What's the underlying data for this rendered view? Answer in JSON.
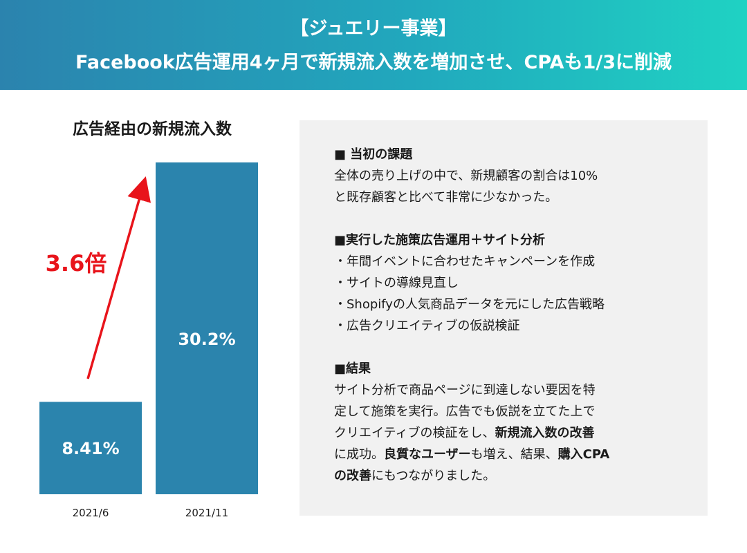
{
  "header": {
    "line1": "【ジュエリー事業】",
    "line2": "Facebook広告運用4ヶ月で新規流入数を増加させ、CPAも1/3に削減"
  },
  "chart_data": {
    "type": "bar",
    "title": "広告経由の新規流入数",
    "categories": [
      "2021/6",
      "2021/11"
    ],
    "values": [
      8.41,
      30.2
    ],
    "value_labels": [
      "8.41%",
      "30.2%"
    ],
    "unit": "%",
    "ylim": [
      0,
      32
    ],
    "bar_color": "#2b84ad",
    "annotation": {
      "text": "3.6倍",
      "color": "#e8141b"
    }
  },
  "panel": {
    "issue": {
      "title": "■ 当初の課題",
      "lines": [
        "全体の売り上げの中で、新規顧客の割合は10%",
        "と既存顧客と比べて非常に少なかった。"
      ]
    },
    "action": {
      "title": "■実行した施策広告運用＋サイト分析",
      "items": [
        "・年間イベントに合わせたキャンペーンを作成",
        "・サイトの導線見直し",
        "・Shopifyの人気商品データを元にした広告戦略",
        "・広告クリエイティブの仮説検証"
      ]
    },
    "result": {
      "title": "■結果",
      "line1": "サイト分析で商品ページに到達しない要因を特",
      "line2": "定して施策を実行。広告でも仮説を立てた上で",
      "line3_a": "クリエイティブの検証をし、",
      "line3_b": "新規流入数の改善",
      "line4_a": "に成功。",
      "line4_b": "良質なユーザー",
      "line4_c": "も増え、結果、",
      "line4_d": "購入CPA",
      "line5_a": "の改善",
      "line5_b": "にもつながりました。"
    }
  }
}
